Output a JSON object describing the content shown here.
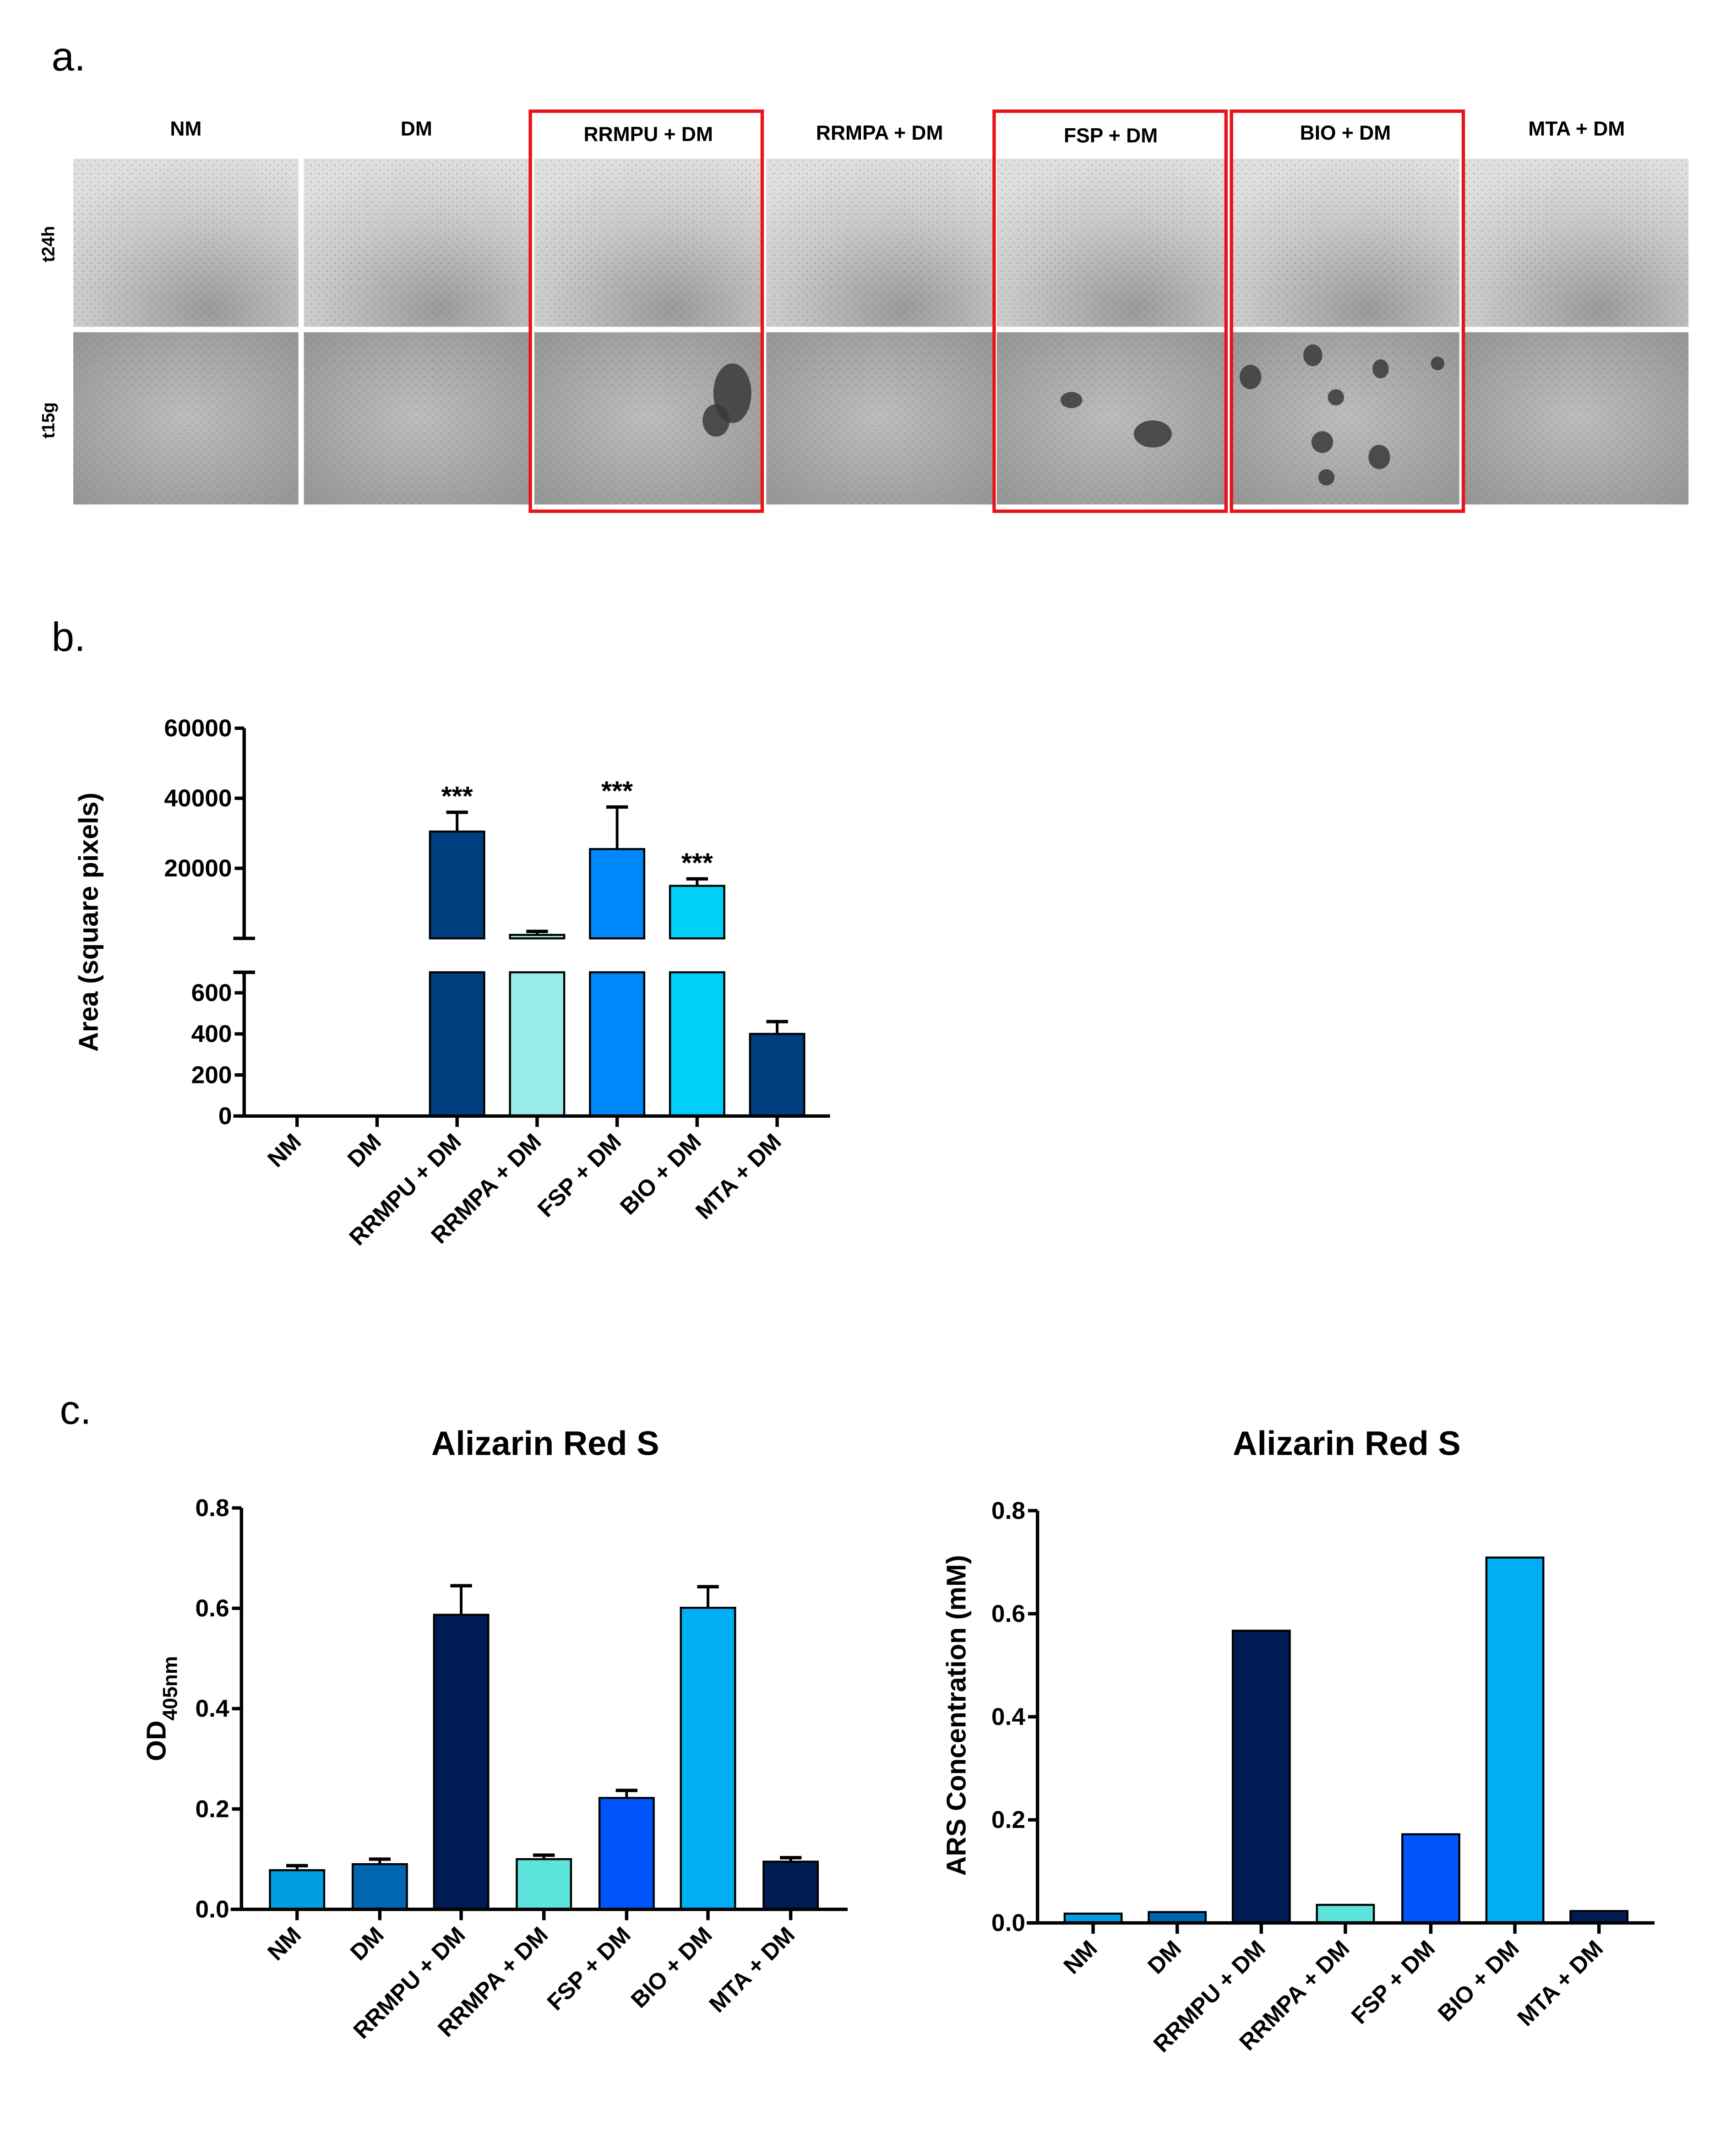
{
  "panel_labels": {
    "a": "a.",
    "b": "b.",
    "c": "c."
  },
  "panel_a": {
    "column_headers": [
      "NM",
      "DM",
      "RRMPU + DM",
      "RRMPA + DM",
      "FSP + DM",
      "BIO + DM",
      "MTA + DM"
    ],
    "row_labels": [
      "t24h",
      "t15g"
    ],
    "highlighted_columns": [
      "RRMPU + DM",
      "FSP + DM",
      "BIO + DM"
    ],
    "highlight_color": "#e8141b"
  },
  "chart_data": [
    {
      "id": "b",
      "type": "bar",
      "title": "",
      "ylabel": "Area (square pixels)",
      "xlabel": "",
      "categories": [
        "NM",
        "DM",
        "RRMPU + DM",
        "RRMPA + DM",
        "FSP + DM",
        "BIO + DM",
        "MTA + DM"
      ],
      "values": [
        0,
        0,
        30500,
        1000,
        25500,
        15000,
        400
      ],
      "errors": [
        0,
        0,
        5500,
        1000,
        12000,
        2000,
        60
      ],
      "significance": [
        "",
        "",
        "***",
        "",
        "***",
        "***",
        ""
      ],
      "colors": [
        "#003f7f",
        "#003f7f",
        "#003f7f",
        "#97ece8",
        "#0088fd",
        "#00cff8",
        "#003f7f"
      ],
      "broken_axis": {
        "lower_range": [
          0,
          700
        ],
        "upper_range": [
          0,
          60000
        ]
      },
      "lower_ticks": [
        "0",
        "200",
        "400",
        "600"
      ],
      "upper_ticks": [
        "20000",
        "40000",
        "60000"
      ]
    },
    {
      "id": "c1",
      "type": "bar",
      "title": "Alizarin Red S",
      "ylabel": "OD",
      "ylabel_sub": "405nm",
      "xlabel": "",
      "categories": [
        "NM",
        "DM",
        "RRMPU + DM",
        "RRMPA + DM",
        "FSP + DM",
        "BIO + DM",
        "MTA + DM"
      ],
      "values": [
        0.078,
        0.09,
        0.587,
        0.1,
        0.222,
        0.601,
        0.095
      ],
      "errors": [
        0.009,
        0.01,
        0.058,
        0.008,
        0.015,
        0.042,
        0.008
      ],
      "colors": [
        "#009fe3",
        "#0066b0",
        "#001b55",
        "#5ce3dc",
        "#0055fd",
        "#00aef4",
        "#001c50"
      ],
      "ylim": [
        0,
        0.8
      ],
      "ticks": [
        "0.0",
        "0.2",
        "0.4",
        "0.6",
        "0.8"
      ]
    },
    {
      "id": "c2",
      "type": "bar",
      "title": "Alizarin Red S",
      "ylabel": "ARS Concentration (mM)",
      "xlabel": "",
      "categories": [
        "NM",
        "DM",
        "RRMPU + DM",
        "RRMPA + DM",
        "FSP + DM",
        "BIO + DM",
        "MTA + DM"
      ],
      "values": [
        0.018,
        0.021,
        0.567,
        0.035,
        0.172,
        0.709,
        0.023
      ],
      "colors": [
        "#009fe3",
        "#0066b0",
        "#001b55",
        "#5ce3dc",
        "#0055fd",
        "#00aef4",
        "#001c50"
      ],
      "ylim": [
        0,
        0.8
      ],
      "ticks": [
        "0.0",
        "0.2",
        "0.4",
        "0.6",
        "0.8"
      ]
    }
  ]
}
